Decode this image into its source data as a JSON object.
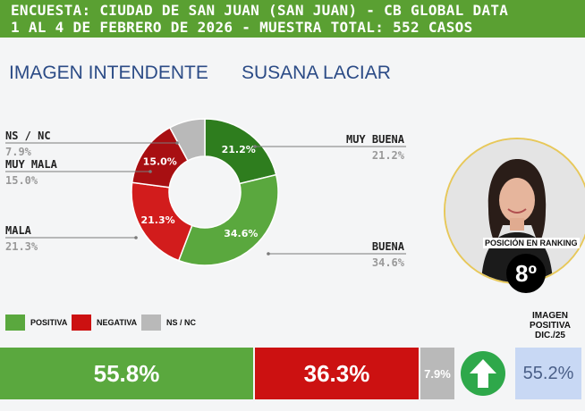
{
  "header": {
    "line1": "ENCUESTA: CIUDAD DE SAN JUAN (SAN JUAN) - CB GLOBAL DATA",
    "line2": "1 AL 4 DE FEBRERO DE 2026 - MUESTRA TOTAL: 552 CASOS"
  },
  "titles": {
    "left": "IMAGEN INTENDENTE",
    "right": "SUSANA LACIAR"
  },
  "chart_data": [
    {
      "type": "pie",
      "variant": "donut",
      "slices": [
        {
          "label": "MUY BUENA",
          "value": 21.2,
          "display": "21.2%",
          "color": "#2e7d1e"
        },
        {
          "label": "BUENA",
          "value": 34.6,
          "display": "34.6%",
          "color": "#5aa83e"
        },
        {
          "label": "MALA",
          "value": 21.3,
          "display": "21.3%",
          "color": "#d21c1c"
        },
        {
          "label": "MUY MALA",
          "value": 15.0,
          "display": "15.0%",
          "color": "#a80f12"
        },
        {
          "label": "NS / NC",
          "value": 7.9,
          "display": "7.9%",
          "color": "#b9b9b9"
        }
      ]
    },
    {
      "type": "bar",
      "orientation": "horizontal-stacked",
      "legend": [
        {
          "label": "POSITIVA",
          "color": "#5aa83e"
        },
        {
          "label": "NEGATIVA",
          "color": "#cc1111"
        },
        {
          "label": "NS / NC",
          "color": "#b9b9b9"
        }
      ],
      "segments": [
        {
          "label": "POSITIVA",
          "value": 55.8,
          "display": "55.8%",
          "color": "#5aa83e"
        },
        {
          "label": "NEGATIVA",
          "value": 36.3,
          "display": "36.3%",
          "color": "#cc1111"
        },
        {
          "label": "NS / NC",
          "value": 7.9,
          "display": "7.9%",
          "color": "#b9b9b9"
        }
      ]
    }
  ],
  "ranking": {
    "label": "POSICIÓN EN RANKING",
    "value": "8º"
  },
  "previous": {
    "title_lines": [
      "IMAGEN",
      "POSITIVA",
      "DIC./25"
    ],
    "value": "55.2%"
  },
  "icons": {
    "trend": "arrow-up-icon",
    "portrait": "candidate-portrait"
  }
}
